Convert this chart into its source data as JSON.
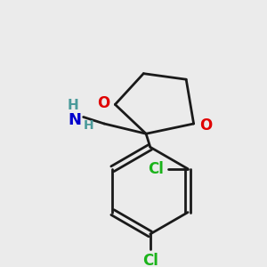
{
  "background_color": "#ebebeb",
  "bond_color": "#1a1a1a",
  "oxygen_color": "#e00000",
  "nitrogen_color": "#0000cd",
  "chlorine_color": "#1ab31a",
  "h_color": "#4a9a9a",
  "line_width": 2.0,
  "figsize": [
    3.0,
    3.0
  ],
  "dpi": 100,
  "xlim": [
    0,
    300
  ],
  "ylim": [
    0,
    300
  ]
}
